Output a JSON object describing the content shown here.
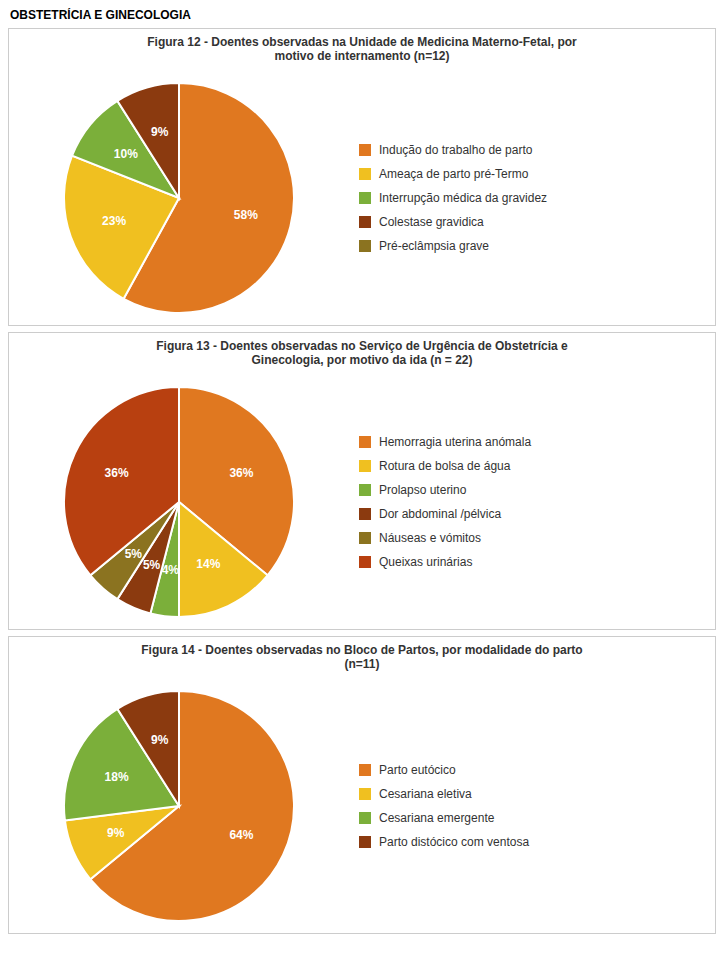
{
  "title": "OBSTETRÍCIA E GINECOLOGIA",
  "chart_data": [
    {
      "type": "pie",
      "title": "Figura 12 - Doentes observadas na Unidade de Medicina Materno-Fetal, por\nmotivo de internamento (n=12)",
      "categories": [
        "Indução do trabalho de parto",
        "Ameaça de parto pré-Termo",
        "Interrupção médica da gravidez",
        "Colestase gravidica",
        "Pré-eclâmpsia grave"
      ],
      "values": [
        58,
        23,
        10,
        9,
        null
      ],
      "value_labels": [
        "58%",
        "23%",
        "10%",
        "9%",
        null
      ],
      "colors": [
        "#E07820",
        "#F0C020",
        "#7BAF3A",
        "#8B3A0F",
        "#8B7320"
      ],
      "data_labels": true,
      "legend": "right"
    },
    {
      "type": "pie",
      "title": "Figura 13 - Doentes observadas no Serviço de Urgência de Obstetrícia e\nGinecologia, por motivo da ida (n = 22)",
      "categories": [
        "Hemorragia uterina anómala",
        "Rotura de bolsa de água",
        "Prolapso uterino",
        "Dor abdominal /pélvica",
        "Náuseas e vómitos",
        "Queixas urinárias"
      ],
      "values": [
        36,
        14,
        4,
        5,
        5,
        36
      ],
      "value_labels": [
        "36%",
        "14%",
        "4%",
        "5%",
        "5%",
        "36%"
      ],
      "colors": [
        "#E07820",
        "#F0C020",
        "#7BAF3A",
        "#8B3A0F",
        "#8B7320",
        "#B84010"
      ],
      "data_labels": true,
      "legend": "right"
    },
    {
      "type": "pie",
      "title": "Figura 14 - Doentes observadas no Bloco de Partos, por modalidade do parto\n(n=11)",
      "categories": [
        "Parto eutócico",
        "Cesariana eletiva",
        "Cesariana emergente",
        "Parto distócico com ventosa"
      ],
      "values": [
        64,
        9,
        18,
        9
      ],
      "value_labels": [
        "64%",
        "9%",
        "18%",
        "9%"
      ],
      "colors": [
        "#E07820",
        "#F0C020",
        "#7BAF3A",
        "#8B3A0F"
      ],
      "data_labels": true,
      "legend": "right"
    }
  ]
}
